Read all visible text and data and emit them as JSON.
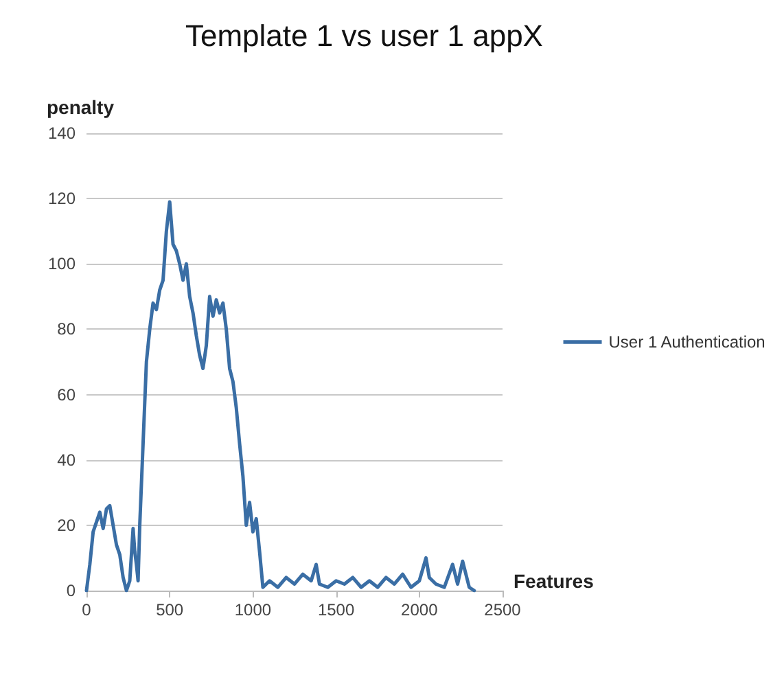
{
  "chart_data": {
    "type": "line",
    "title": "Template 1 vs user 1 appX",
    "xlabel": "Features",
    "ylabel": "penalty",
    "x": [
      0,
      20,
      40,
      60,
      80,
      100,
      120,
      140,
      160,
      180,
      200,
      220,
      240,
      260,
      280,
      290,
      300,
      310,
      320,
      340,
      360,
      380,
      400,
      420,
      440,
      460,
      480,
      500,
      520,
      540,
      560,
      580,
      600,
      620,
      640,
      660,
      680,
      700,
      720,
      740,
      760,
      780,
      800,
      820,
      840,
      860,
      880,
      900,
      920,
      940,
      960,
      980,
      1000,
      1020,
      1040,
      1060,
      1080,
      1100,
      1150,
      1200,
      1250,
      1300,
      1350,
      1380,
      1400,
      1450,
      1500,
      1550,
      1600,
      1650,
      1700,
      1750,
      1800,
      1850,
      1900,
      1950,
      2000,
      2040,
      2060,
      2100,
      2150,
      2200,
      2230,
      2260,
      2300,
      2330
    ],
    "series": [
      {
        "name": "User 1 Authentication",
        "color": "#3a6ea5",
        "values": [
          0,
          8,
          18,
          21,
          24,
          19,
          25,
          26,
          20,
          14,
          11,
          4,
          0,
          3,
          19,
          12,
          8,
          3,
          20,
          45,
          70,
          80,
          88,
          86,
          92,
          95,
          110,
          119,
          106,
          104,
          100,
          95,
          100,
          90,
          85,
          78,
          72,
          68,
          75,
          90,
          84,
          89,
          85,
          88,
          80,
          68,
          64,
          56,
          45,
          35,
          20,
          27,
          18,
          22,
          12,
          1,
          2,
          3,
          1,
          4,
          2,
          5,
          3,
          8,
          2,
          1,
          3,
          2,
          4,
          1,
          3,
          1,
          4,
          2,
          5,
          1,
          3,
          10,
          4,
          2,
          1,
          8,
          2,
          9,
          1,
          0
        ]
      }
    ],
    "xlim": [
      0,
      2500
    ],
    "xticks": [
      0,
      500,
      1000,
      1500,
      2000,
      2500
    ],
    "ylim": [
      0,
      140
    ],
    "yticks": [
      0,
      20,
      40,
      60,
      80,
      100,
      120,
      140
    ],
    "grid": "y",
    "legend": "right",
    "marker": "none",
    "line_style": "solid"
  }
}
